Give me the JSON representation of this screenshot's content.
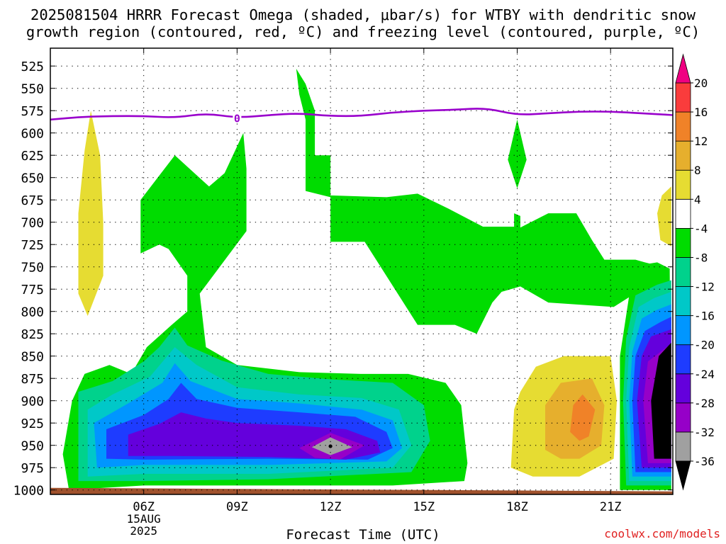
{
  "title_line1": "2025081504 HRRR Forecast Omega (shaded, μbar/s) for WTBY with dendritic snow",
  "title_line2": "growth region (contoured, red, ºC) and freezing level (contoured, purple, ºC)",
  "xlabel": "Forecast Time (UTC)",
  "credit": "coolwx.com/models",
  "chart_data": {
    "type": "heatmap",
    "x_unit": "hour UTC, 15 Aug 2025",
    "xlim": [
      3,
      23
    ],
    "y_unit": "mb",
    "ylim": [
      1005,
      505
    ],
    "y_ticks": [
      525,
      550,
      575,
      600,
      625,
      650,
      675,
      700,
      725,
      750,
      775,
      800,
      825,
      850,
      875,
      900,
      925,
      950,
      975,
      1000
    ],
    "x_ticks": [
      {
        "hour": 6,
        "label": "06Z"
      },
      {
        "hour": 9,
        "label": "09Z"
      },
      {
        "hour": 12,
        "label": "12Z"
      },
      {
        "hour": 15,
        "label": "15Z"
      },
      {
        "hour": 18,
        "label": "18Z"
      },
      {
        "hour": 21,
        "label": "21Z"
      }
    ],
    "date_label": [
      "15AUG",
      "2025"
    ],
    "colorbar": {
      "levels": [
        -36,
        -32,
        -28,
        -24,
        -20,
        -16,
        -12,
        -8,
        -4,
        4,
        8,
        12,
        16,
        20
      ],
      "colors": [
        "#000000",
        "#a0a0a0",
        "#9600c8",
        "#6400dc",
        "#1e3cff",
        "#0096ff",
        "#00c8c8",
        "#00d28c",
        "#00dc00",
        "#ffffff",
        "#e6dc32",
        "#e6af2d",
        "#f08228",
        "#fa3c3c",
        "#f00082"
      ]
    },
    "freezing_level": {
      "color": "#9900cc",
      "label": "0",
      "label_hour": 9,
      "points": [
        [
          3,
          585
        ],
        [
          4,
          582
        ],
        [
          5,
          581
        ],
        [
          6,
          581
        ],
        [
          7,
          583
        ],
        [
          8,
          578
        ],
        [
          9,
          583
        ],
        [
          10,
          580
        ],
        [
          11,
          578
        ],
        [
          12,
          581
        ],
        [
          13,
          581
        ],
        [
          14,
          577
        ],
        [
          15,
          575
        ],
        [
          16,
          574
        ],
        [
          17,
          572
        ],
        [
          18,
          580
        ],
        [
          19,
          578
        ],
        [
          20,
          576
        ],
        [
          21,
          576
        ],
        [
          22,
          578
        ],
        [
          23,
          580
        ]
      ]
    },
    "omega_areas": [
      {
        "value": -6,
        "pts": [
          [
            3.6,
            1000
          ],
          [
            3.4,
            960
          ],
          [
            3.7,
            900
          ],
          [
            4.1,
            870
          ],
          [
            4.9,
            860
          ],
          [
            5.6,
            870
          ],
          [
            6.1,
            840
          ],
          [
            6.9,
            815
          ],
          [
            7.4,
            800
          ],
          [
            7.4,
            760
          ],
          [
            6.8,
            730
          ],
          [
            6.5,
            725
          ],
          [
            5.9,
            735
          ],
          [
            5.9,
            675
          ],
          [
            7.0,
            625
          ],
          [
            8.1,
            660
          ],
          [
            8.6,
            645
          ],
          [
            9.2,
            600
          ],
          [
            9.3,
            640
          ],
          [
            9.3,
            710
          ],
          [
            7.8,
            780
          ],
          [
            8.0,
            840
          ],
          [
            9.0,
            860
          ],
          [
            11.0,
            868
          ],
          [
            13.0,
            870
          ],
          [
            14.5,
            870
          ],
          [
            15.7,
            880
          ],
          [
            16.2,
            905
          ],
          [
            16.4,
            970
          ],
          [
            16.3,
            990
          ],
          [
            14.0,
            995
          ],
          [
            10.0,
            995
          ],
          [
            6.0,
            995
          ],
          [
            3.6,
            1000
          ]
        ]
      },
      {
        "value": -6,
        "pts": [
          [
            11.2,
            665
          ],
          [
            11.2,
            585
          ],
          [
            11.0,
            557
          ],
          [
            10.9,
            528
          ],
          [
            11.2,
            545
          ],
          [
            11.5,
            575
          ],
          [
            11.5,
            625
          ],
          [
            12.0,
            625
          ],
          [
            12.0,
            670
          ],
          [
            13.8,
            672
          ],
          [
            14.8,
            668
          ],
          [
            15.8,
            685
          ],
          [
            16.9,
            705
          ],
          [
            17.9,
            705
          ],
          [
            17.9,
            690
          ],
          [
            18.1,
            693
          ],
          [
            18.1,
            706
          ],
          [
            19.0,
            690
          ],
          [
            19.9,
            690
          ],
          [
            20.4,
            720
          ],
          [
            20.8,
            742
          ],
          [
            21.8,
            742
          ],
          [
            22.1,
            745
          ],
          [
            22.9,
            752
          ],
          [
            22.0,
            775
          ],
          [
            21.1,
            795
          ],
          [
            19.0,
            790
          ],
          [
            18.1,
            772
          ],
          [
            17.5,
            778
          ],
          [
            17.2,
            790
          ],
          [
            16.7,
            825
          ],
          [
            16.0,
            815
          ],
          [
            14.8,
            815
          ],
          [
            13.1,
            722
          ],
          [
            12.0,
            722
          ],
          [
            12.0,
            672
          ],
          [
            11.2,
            665
          ]
        ]
      },
      {
        "value": -6,
        "pts": [
          [
            18.0,
            585
          ],
          [
            18.3,
            630
          ],
          [
            18.0,
            662
          ],
          [
            17.7,
            630
          ]
        ]
      },
      {
        "value": -6,
        "pts": [
          [
            21.3,
            1000
          ],
          [
            21.3,
            850
          ],
          [
            21.6,
            782
          ],
          [
            21.6,
            750
          ],
          [
            22.5,
            745
          ],
          [
            22.9,
            752
          ],
          [
            22.95,
            1000
          ]
        ]
      },
      {
        "value": -10,
        "pts": [
          [
            3.9,
            990
          ],
          [
            3.9,
            890
          ],
          [
            5.0,
            878
          ],
          [
            6.0,
            856
          ],
          [
            6.5,
            840
          ],
          [
            7.0,
            818
          ],
          [
            7.4,
            838
          ],
          [
            8.5,
            855
          ],
          [
            10.0,
            870
          ],
          [
            12.0,
            876
          ],
          [
            14.0,
            880
          ],
          [
            15.0,
            905
          ],
          [
            15.2,
            945
          ],
          [
            14.6,
            980
          ],
          [
            10.0,
            988
          ],
          [
            6.0,
            990
          ],
          [
            3.9,
            990
          ]
        ]
      },
      {
        "value": -14,
        "pts": [
          [
            4.2,
            985
          ],
          [
            4.2,
            910
          ],
          [
            5.0,
            893
          ],
          [
            6.2,
            873
          ],
          [
            7.0,
            840
          ],
          [
            7.7,
            860
          ],
          [
            9.0,
            885
          ],
          [
            11.0,
            893
          ],
          [
            13.0,
            897
          ],
          [
            14.2,
            910
          ],
          [
            14.6,
            950
          ],
          [
            14.0,
            975
          ],
          [
            10.0,
            982
          ],
          [
            6.0,
            982
          ],
          [
            4.2,
            985
          ]
        ]
      },
      {
        "value": -18,
        "pts": [
          [
            4.5,
            975
          ],
          [
            4.4,
            925
          ],
          [
            5.5,
            903
          ],
          [
            6.6,
            880
          ],
          [
            7.0,
            858
          ],
          [
            7.5,
            878
          ],
          [
            9.0,
            898
          ],
          [
            11.0,
            903
          ],
          [
            13.0,
            910
          ],
          [
            14.0,
            922
          ],
          [
            14.3,
            953
          ],
          [
            13.8,
            968
          ],
          [
            10.0,
            972
          ],
          [
            6.0,
            972
          ],
          [
            4.5,
            975
          ]
        ]
      },
      {
        "value": -22,
        "pts": [
          [
            4.8,
            965
          ],
          [
            4.8,
            932
          ],
          [
            6.0,
            916
          ],
          [
            6.8,
            898
          ],
          [
            7.2,
            880
          ],
          [
            7.7,
            898
          ],
          [
            9.0,
            908
          ],
          [
            11.0,
            913
          ],
          [
            12.8,
            918
          ],
          [
            13.8,
            935
          ],
          [
            14.0,
            953
          ],
          [
            13.2,
            966
          ],
          [
            10.0,
            965
          ],
          [
            6.0,
            966
          ],
          [
            4.8,
            965
          ]
        ]
      },
      {
        "value": -26,
        "pts": [
          [
            5.5,
            962
          ],
          [
            5.5,
            938
          ],
          [
            6.5,
            926
          ],
          [
            7.2,
            913
          ],
          [
            8.0,
            920
          ],
          [
            9.0,
            925
          ],
          [
            11.0,
            928
          ],
          [
            12.5,
            932
          ],
          [
            13.5,
            945
          ],
          [
            13.6,
            958
          ],
          [
            12.5,
            966
          ],
          [
            10.0,
            963
          ],
          [
            7.0,
            962
          ],
          [
            5.5,
            962
          ]
        ]
      },
      {
        "value": -30,
        "pts": [
          [
            11.0,
            953
          ],
          [
            12.0,
            936
          ],
          [
            13.1,
            950
          ],
          [
            12.3,
            966
          ],
          [
            11.5,
            964
          ],
          [
            11.0,
            953
          ]
        ]
      },
      {
        "value": -34,
        "pts": [
          [
            11.4,
            952
          ],
          [
            12.0,
            941
          ],
          [
            12.7,
            952
          ],
          [
            12.0,
            961
          ]
        ]
      },
      {
        "value": -10,
        "pts": [
          [
            21.5,
            995
          ],
          [
            21.4,
            900
          ],
          [
            21.5,
            830
          ],
          [
            21.8,
            782
          ],
          [
            22.5,
            770
          ],
          [
            22.95,
            765
          ],
          [
            22.95,
            995
          ]
        ]
      },
      {
        "value": -14,
        "pts": [
          [
            21.6,
            990
          ],
          [
            21.5,
            900
          ],
          [
            21.6,
            840
          ],
          [
            21.9,
            795
          ],
          [
            22.4,
            785
          ],
          [
            22.95,
            778
          ],
          [
            22.95,
            990
          ]
        ]
      },
      {
        "value": -18,
        "pts": [
          [
            21.7,
            985
          ],
          [
            21.6,
            900
          ],
          [
            21.7,
            845
          ],
          [
            22.0,
            808
          ],
          [
            22.5,
            798
          ],
          [
            22.95,
            792
          ],
          [
            22.95,
            985
          ]
        ]
      },
      {
        "value": -22,
        "pts": [
          [
            21.8,
            980
          ],
          [
            21.7,
            900
          ],
          [
            21.8,
            850
          ],
          [
            22.1,
            822
          ],
          [
            22.6,
            812
          ],
          [
            22.95,
            806
          ],
          [
            22.95,
            980
          ]
        ]
      },
      {
        "value": -26,
        "pts": [
          [
            22.0,
            975
          ],
          [
            21.85,
            900
          ],
          [
            22.0,
            850
          ],
          [
            22.3,
            828
          ],
          [
            22.95,
            820
          ],
          [
            22.95,
            975
          ]
        ]
      },
      {
        "value": -30,
        "pts": [
          [
            22.2,
            970
          ],
          [
            22.05,
            900
          ],
          [
            22.2,
            856
          ],
          [
            22.95,
            836
          ],
          [
            22.95,
            970
          ]
        ]
      },
      {
        "value": -38,
        "pts": [
          [
            22.4,
            965
          ],
          [
            22.3,
            900
          ],
          [
            22.55,
            850
          ],
          [
            22.95,
            835
          ],
          [
            22.95,
            965
          ]
        ]
      },
      {
        "value": 6,
        "pts": [
          [
            4.3,
            575
          ],
          [
            4.6,
            625
          ],
          [
            4.7,
            700
          ],
          [
            4.7,
            760
          ],
          [
            4.2,
            805
          ],
          [
            3.9,
            780
          ],
          [
            3.9,
            690
          ],
          [
            4.1,
            620
          ]
        ]
      },
      {
        "value": 6,
        "pts": [
          [
            22.95,
            660
          ],
          [
            22.95,
            727
          ],
          [
            22.6,
            720
          ],
          [
            22.5,
            690
          ],
          [
            22.65,
            670
          ]
        ]
      },
      {
        "value": 6,
        "pts": [
          [
            17.8,
            975
          ],
          [
            17.9,
            910
          ],
          [
            18.1,
            890
          ],
          [
            18.6,
            862
          ],
          [
            19.5,
            850
          ],
          [
            21.0,
            850
          ],
          [
            21.2,
            900
          ],
          [
            21.1,
            965
          ],
          [
            20.0,
            985
          ],
          [
            18.5,
            985
          ]
        ]
      },
      {
        "value": 10,
        "pts": [
          [
            18.9,
            955
          ],
          [
            18.9,
            905
          ],
          [
            19.4,
            880
          ],
          [
            20.4,
            875
          ],
          [
            20.8,
            905
          ],
          [
            20.7,
            950
          ],
          [
            20.0,
            965
          ],
          [
            19.4,
            965
          ]
        ]
      },
      {
        "value": 14,
        "pts": [
          [
            19.7,
            935
          ],
          [
            19.8,
            905
          ],
          [
            20.1,
            893
          ],
          [
            20.5,
            910
          ],
          [
            20.3,
            940
          ],
          [
            20.0,
            945
          ]
        ]
      }
    ],
    "ground_strip": {
      "color": "#a0522d",
      "top_mb": 1000
    }
  }
}
